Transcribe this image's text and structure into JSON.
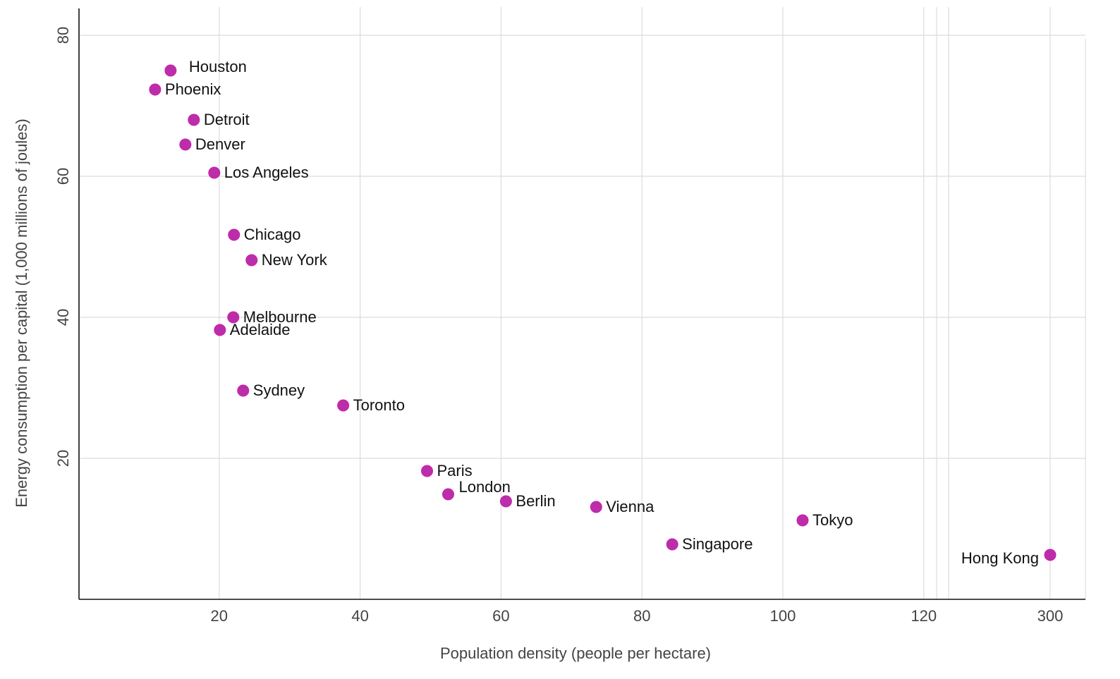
{
  "chart_data": {
    "type": "scatter",
    "title": "",
    "xlabel": "Population density (people per hectare)",
    "ylabel": "Energy consumption per capital (1,000 millions of joules)",
    "x_ticks": [
      20,
      40,
      60,
      80,
      100,
      120,
      300
    ],
    "y_ticks": [
      20,
      40,
      60,
      80
    ],
    "xlim": [
      0,
      124
    ],
    "x_axis_break": {
      "after": 120,
      "resumes_at": 300
    },
    "ylim": [
      0,
      84
    ],
    "grid": true,
    "legend": "none",
    "marker_color": "#b5179e",
    "points": [
      {
        "label": "Houston",
        "x": 13.1,
        "y": 75.0,
        "label_side": "right-offset"
      },
      {
        "label": "Phoenix",
        "x": 10.9,
        "y": 72.3,
        "label_side": "right"
      },
      {
        "label": "Detroit",
        "x": 16.4,
        "y": 68.0,
        "label_side": "right"
      },
      {
        "label": "Denver",
        "x": 15.2,
        "y": 64.5,
        "label_side": "right"
      },
      {
        "label": "Los Angeles",
        "x": 19.3,
        "y": 60.5,
        "label_side": "right"
      },
      {
        "label": "Chicago",
        "x": 22.1,
        "y": 51.7,
        "label_side": "right"
      },
      {
        "label": "New York",
        "x": 24.6,
        "y": 48.1,
        "label_side": "right"
      },
      {
        "label": "Melbourne",
        "x": 22.0,
        "y": 40.0,
        "label_side": "right"
      },
      {
        "label": "Adelaide",
        "x": 20.1,
        "y": 38.2,
        "label_side": "right"
      },
      {
        "label": "Sydney",
        "x": 23.4,
        "y": 29.6,
        "label_side": "right"
      },
      {
        "label": "Toronto",
        "x": 37.6,
        "y": 27.5,
        "label_side": "right"
      },
      {
        "label": "Paris",
        "x": 49.5,
        "y": 18.2,
        "label_side": "right"
      },
      {
        "label": "London",
        "x": 52.5,
        "y": 14.9,
        "label_side": "above-right"
      },
      {
        "label": "Berlin",
        "x": 60.7,
        "y": 13.9,
        "label_side": "right"
      },
      {
        "label": "Vienna",
        "x": 73.5,
        "y": 13.1,
        "label_side": "right"
      },
      {
        "label": "Singapore",
        "x": 84.3,
        "y": 7.8,
        "label_side": "right"
      },
      {
        "label": "Tokyo",
        "x": 102.8,
        "y": 11.2,
        "label_side": "right"
      },
      {
        "label": "Hong Kong",
        "x": 300,
        "y": 6.3,
        "label_side": "left"
      }
    ]
  }
}
